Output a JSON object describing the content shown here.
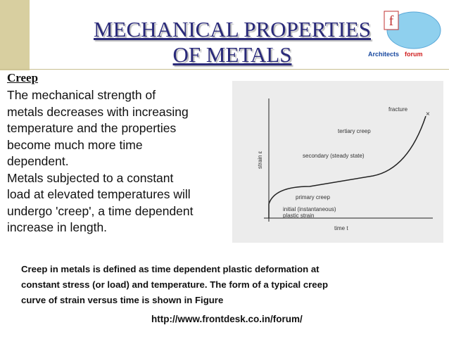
{
  "header": {
    "title_lines": [
      "MECHANICAL PROPERTIES",
      "OF METALS"
    ],
    "logo": [
      "Architects",
      "forum"
    ]
  },
  "body": {
    "heading": "Creep",
    "lines": [
      "The mechanical strength of",
      "metals decreases with increasing",
      "temperature and the properties",
      "become much more time",
      "dependent.",
      "Metals subjected to a constant",
      "load at elevated temperatures will",
      "undergo 'creep', a time dependent",
      "increase in length."
    ]
  },
  "figure": {
    "y_label": "strain ε",
    "x_label": "time t",
    "fracture": "fracture",
    "tertiary": "tertiary creep",
    "secondary": "secondary (steady state)",
    "primary": "primary creep",
    "initial": [
      "initial (instantaneous)",
      "plastic strain"
    ]
  },
  "caption": {
    "lines": [
      "Creep in metals is defined as time dependent plastic deformation at",
      "constant stress (or load) and temperature. The form of a typical creep",
      "curve of strain versus time is shown in Figure"
    ]
  },
  "footer": {
    "url": "http://www.frontdesk.co.in/forum/"
  }
}
